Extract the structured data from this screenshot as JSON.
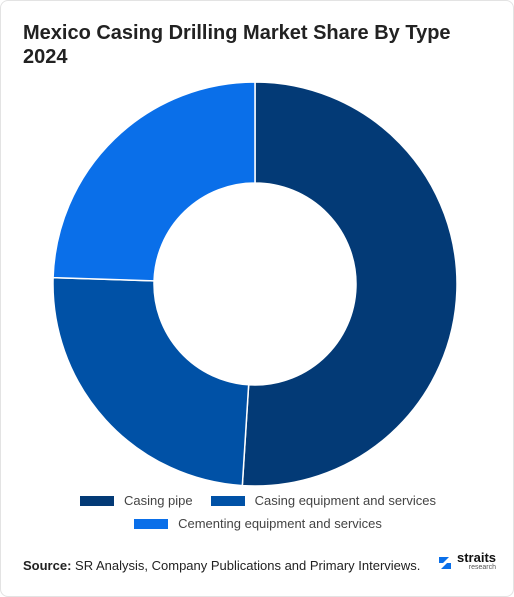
{
  "chart_data": {
    "type": "donut",
    "title": "Mexico Casing Drilling Market Share By Type 2024",
    "categories": [
      "Casing pipe",
      "Casing equipment and services",
      "Cementing equipment and services"
    ],
    "values": [
      51,
      24.5,
      24.5
    ],
    "colors": [
      "#033a76",
      "#0051a6",
      "#0a6fe9"
    ]
  },
  "footer": {
    "source_label": "Source:",
    "source_text": "SR Analysis, Company Publications and Primary Interviews.",
    "logo": "straits",
    "logo_sub": "research"
  }
}
